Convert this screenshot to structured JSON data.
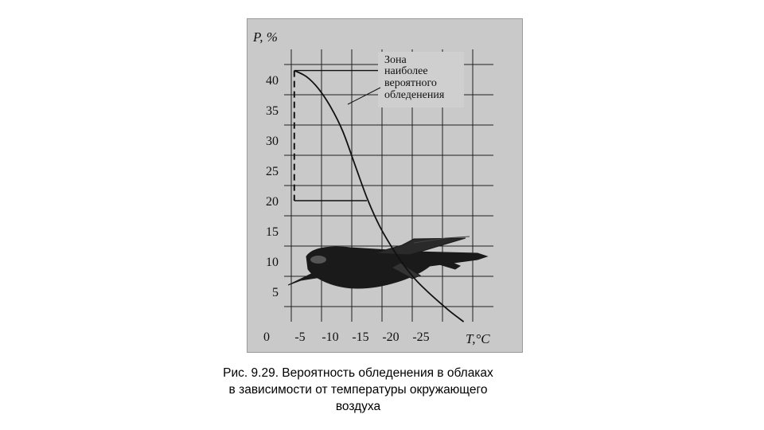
{
  "chart_data": {
    "type": "line",
    "ylabel": "P, %",
    "xlabel": "T,°C",
    "xlim": [
      0,
      -35
    ],
    "ylim": [
      0,
      45
    ],
    "x_ticks": [
      "0",
      "-5",
      "-10",
      "-15",
      "-20",
      "-25"
    ],
    "x_tick_values": [
      0,
      -5,
      -10,
      -15,
      -20,
      -25
    ],
    "y_ticks": [
      "5",
      "10",
      "15",
      "20",
      "25",
      "30",
      "35",
      "40"
    ],
    "y_tick_values": [
      5,
      10,
      15,
      20,
      25,
      30,
      35,
      40
    ],
    "grid": true,
    "series": [
      {
        "x": [
          -3,
          -5,
          -7,
          -9,
          -11,
          -13,
          -15,
          -17,
          -19,
          -21,
          -23,
          -25,
          -27,
          -29,
          -31
        ],
        "values": [
          41.5,
          40.5,
          38.5,
          35.5,
          31.5,
          26,
          20.5,
          16,
          12.5,
          9.5,
          7,
          5,
          3.2,
          1.5,
          0
        ]
      }
    ],
    "annotation": {
      "text": [
        "Зона",
        "наиболее",
        "вероятного",
        "обледенения"
      ],
      "zone_x": [
        -3,
        -15
      ],
      "zone_y": [
        20,
        41.5
      ]
    },
    "illustration": "airplane"
  },
  "caption": {
    "lines": [
      "Рис. 9.29. Вероятность обледенения в облаках",
      "в зависимости от температуры окружающего",
      "воздуха"
    ]
  }
}
